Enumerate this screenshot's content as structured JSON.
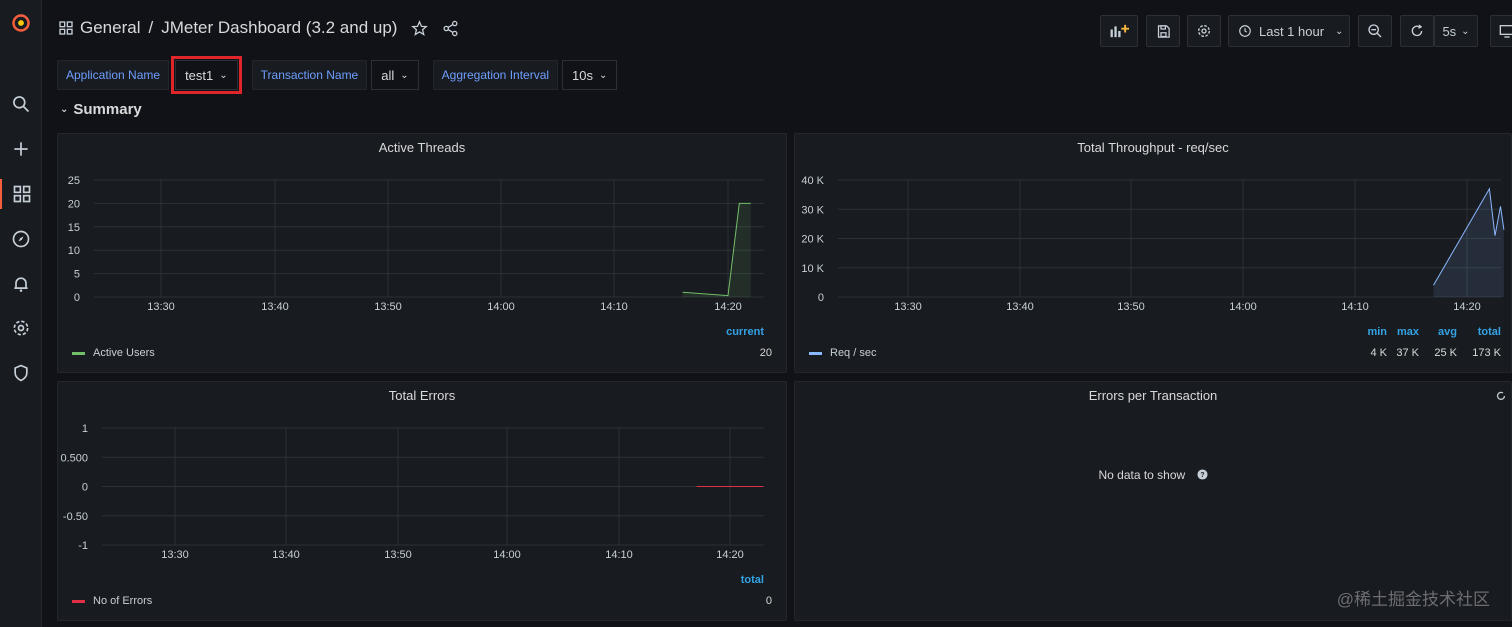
{
  "header": {
    "section": "General",
    "separator": "/",
    "dashboard_title": "JMeter Dashboard (3.2 and up)",
    "time_range": "Last 1 hour",
    "refresh_interval": "5s"
  },
  "variables": [
    {
      "label": "Application Name",
      "value": "test1",
      "highlighted": true
    },
    {
      "label": "Transaction Name",
      "value": "all",
      "highlighted": false
    },
    {
      "label": "Aggregation Interval",
      "value": "10s",
      "highlighted": false
    }
  ],
  "row": {
    "title": "Summary"
  },
  "colors": {
    "accent_blue": "#33a2e5",
    "label_blue": "#6e9fff",
    "green_series": "#73bf69",
    "cyan_series": "#8ab8ff",
    "red_series": "#e02f44",
    "highlight_red": "#e0252b"
  },
  "chart_data": [
    {
      "type": "line",
      "title": "Active Threads",
      "x_ticks": [
        "13:30",
        "13:40",
        "13:50",
        "14:00",
        "14:10",
        "14:20"
      ],
      "y_ticks": [
        "25",
        "20",
        "15",
        "10",
        "5",
        "0"
      ],
      "ylim": [
        0,
        25
      ],
      "series": [
        {
          "name": "Active Users",
          "points": [
            [
              "14:16",
              1
            ],
            [
              "14:20",
              0.3
            ],
            [
              "14:21",
              20
            ],
            [
              "14:22",
              20
            ]
          ]
        }
      ],
      "legend": {
        "columns": [
          "current"
        ],
        "rows": [
          {
            "name": "Active Users",
            "values": [
              "20"
            ]
          }
        ]
      }
    },
    {
      "type": "line",
      "title": "Total Throughput - req/sec",
      "x_ticks": [
        "13:30",
        "13:40",
        "13:50",
        "14:00",
        "14:10",
        "14:20"
      ],
      "y_ticks": [
        "40 K",
        "30 K",
        "20 K",
        "10 K",
        "0"
      ],
      "ylim": [
        0,
        40000
      ],
      "series": [
        {
          "name": "Req / sec",
          "points": [
            [
              "14:17",
              4000
            ],
            [
              "14:22",
              37000
            ],
            [
              "14:22.5",
              21000
            ],
            [
              "14:23",
              31000
            ],
            [
              "14:23.3",
              23000
            ]
          ]
        }
      ],
      "legend": {
        "columns": [
          "min",
          "max",
          "avg",
          "total"
        ],
        "rows": [
          {
            "name": "Req / sec",
            "values": [
              "4 K",
              "37 K",
              "25 K",
              "173 K"
            ]
          }
        ]
      }
    },
    {
      "type": "line",
      "title": "Total Errors",
      "x_ticks": [
        "13:30",
        "13:40",
        "13:50",
        "14:00",
        "14:10",
        "14:20"
      ],
      "y_ticks": [
        "1",
        "0.500",
        "0",
        "-0.50",
        "-1"
      ],
      "ylim": [
        -1,
        1
      ],
      "series": [
        {
          "name": "No of Errors",
          "points": [
            [
              "14:17",
              0
            ],
            [
              "14:23",
              0
            ]
          ]
        }
      ],
      "legend": {
        "columns": [
          "total"
        ],
        "rows": [
          {
            "name": "No of Errors",
            "values": [
              "0"
            ]
          }
        ]
      }
    },
    {
      "type": "table",
      "title": "Errors per Transaction",
      "empty_message": "No data to show"
    }
  ],
  "watermark": "@稀土掘金技术社区"
}
